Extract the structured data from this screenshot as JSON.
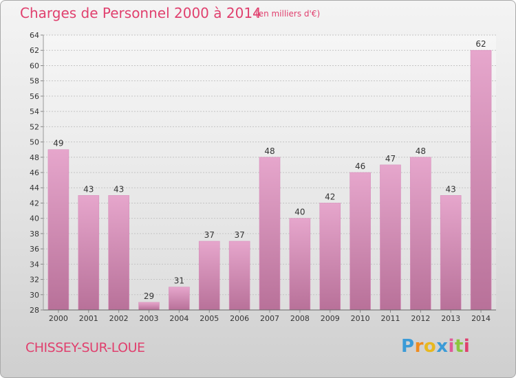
{
  "header": {
    "title": "Charges de Personnel 2000 à 2014",
    "subtitle": "(en milliers d'€)"
  },
  "footer": {
    "commune": "CHISSEY-SUR-LOUE",
    "brand_letters": [
      "P",
      "r",
      "o",
      "x",
      "i",
      "t",
      "i"
    ]
  },
  "colors": {
    "title": "#e0406e",
    "bar_top": "#e6a6cc",
    "bar_bottom": "#b87199",
    "axis_text": "#333333"
  },
  "chart_data": {
    "type": "bar",
    "title": "Charges de Personnel 2000 à 2014",
    "subtitle": "(en milliers d'€)",
    "categories": [
      "2000",
      "2001",
      "2002",
      "2003",
      "2004",
      "2005",
      "2006",
      "2007",
      "2008",
      "2009",
      "2010",
      "2011",
      "2012",
      "2013",
      "2014"
    ],
    "values": [
      49,
      43,
      43,
      29,
      31,
      37,
      37,
      48,
      40,
      42,
      46,
      47,
      48,
      43,
      62
    ],
    "ylim": [
      28,
      64
    ],
    "yticks": [
      28,
      30,
      32,
      34,
      36,
      38,
      40,
      42,
      44,
      46,
      48,
      50,
      52,
      54,
      56,
      58,
      60,
      62,
      64
    ],
    "grid": true,
    "legend": "none",
    "data_labels": true
  }
}
